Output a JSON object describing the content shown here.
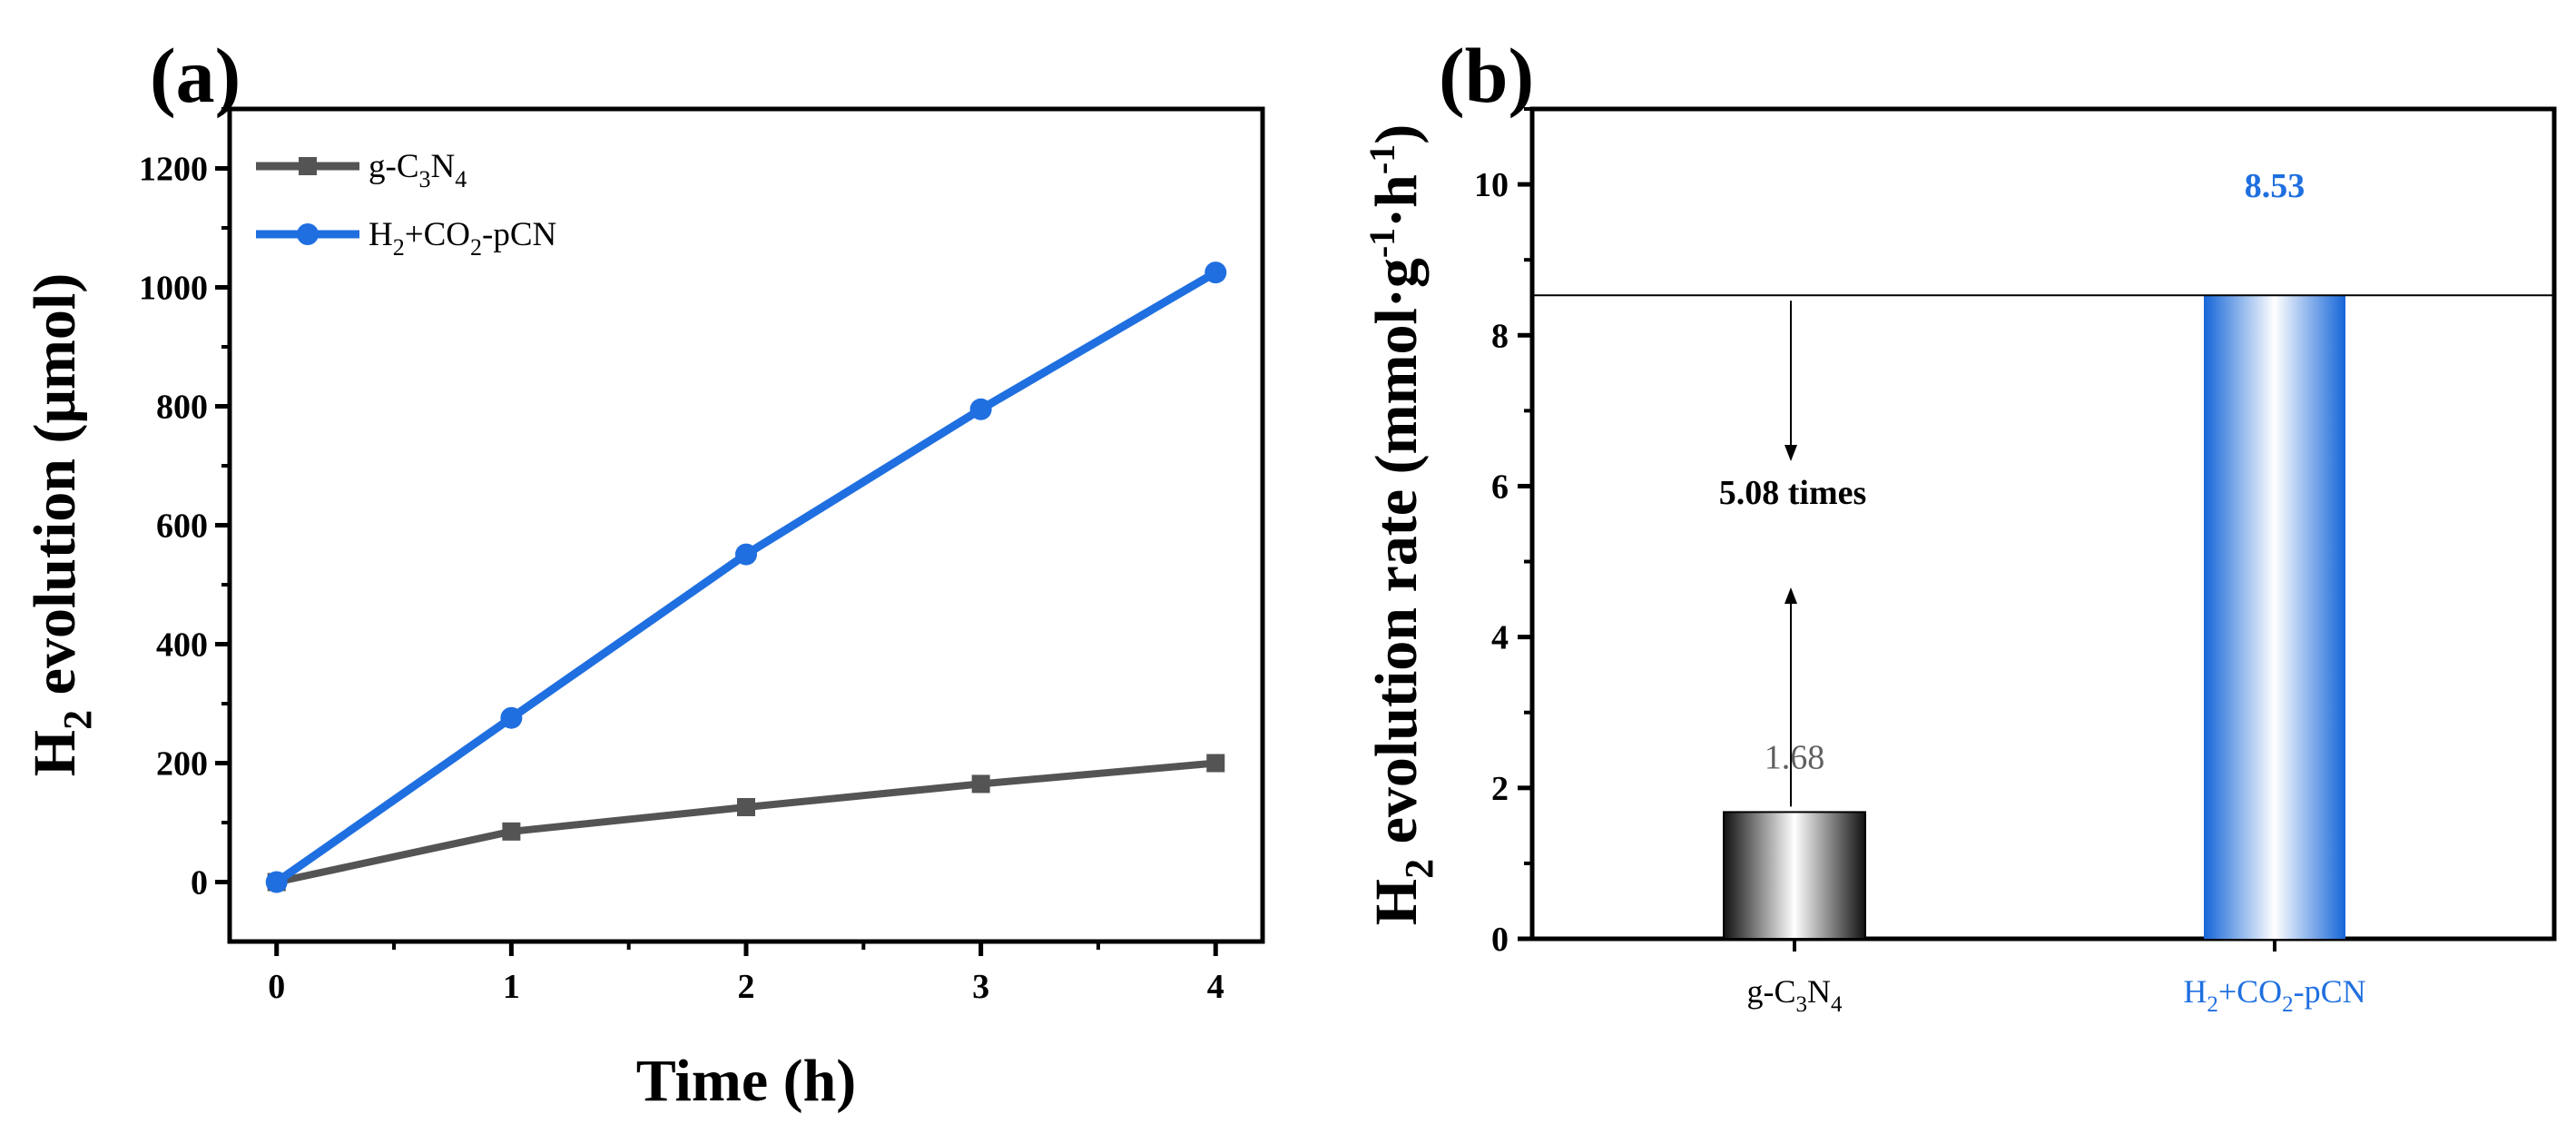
{
  "chart_data": [
    {
      "panel": "(a)",
      "type": "line",
      "x": [
        0,
        1,
        2,
        3,
        4
      ],
      "x_ticks": [
        "0",
        "1",
        "2",
        "3",
        "4"
      ],
      "y_ticks": [
        "0",
        "200",
        "400",
        "600",
        "800",
        "1000",
        "1200"
      ],
      "xlim": [
        -0.2,
        4.2
      ],
      "ylim": [
        -100,
        1300
      ],
      "xlabel": "Time (h)",
      "ylabel_parts": [
        "H",
        "2",
        " evolution (μmol)"
      ],
      "legend_position": "top-left",
      "series": [
        {
          "name_parts": [
            "g-C",
            "3",
            "N",
            "4"
          ],
          "values": [
            0,
            85,
            126,
            165,
            200
          ],
          "color": "#545454",
          "marker": "square"
        },
        {
          "name_parts": [
            "H",
            "2",
            "+CO",
            "2",
            "-pCN"
          ],
          "values": [
            0,
            276,
            551,
            795,
            1025
          ],
          "color": "#1f6fe0",
          "marker": "circle"
        }
      ]
    },
    {
      "panel": "(b)",
      "type": "bar",
      "y_ticks": [
        "0",
        "2",
        "4",
        "6",
        "8",
        "10"
      ],
      "ylim": [
        0,
        11
      ],
      "ylabel_parts": [
        "H",
        "2",
        " evolution rate (mmol·g",
        "-1",
        "·h",
        "-1",
        ")"
      ],
      "categories": [
        {
          "label_parts": [
            "g-C",
            "3",
            "N",
            "4"
          ],
          "value": 1.68,
          "value_label": "1.68",
          "color": "#606060",
          "style": "black-gradient"
        },
        {
          "label_parts": [
            "H",
            "2",
            "+CO",
            "2",
            "-pCN"
          ],
          "value": 8.53,
          "value_label": "8.53",
          "color": "#1f6fe0",
          "style": "blue-gradient"
        }
      ],
      "reference_line": 8.53,
      "annotation": "5.08 times"
    }
  ]
}
